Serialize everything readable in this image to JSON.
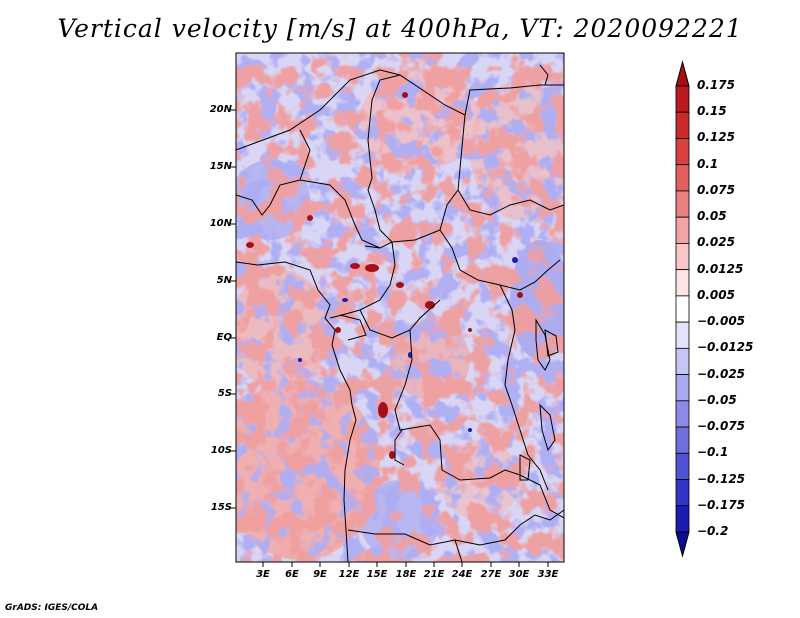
{
  "title": "Vertical velocity [m/s] at 400hPa, VT: 2020092221",
  "credit": "GrADS: IGES/COLA",
  "lat_labels": [
    "20N",
    "15N",
    "10N",
    "5N",
    "EQ",
    "5S",
    "10S",
    "15S"
  ],
  "lon_labels": [
    "3E",
    "6E",
    "9E",
    "12E",
    "15E",
    "18E",
    "21E",
    "24E",
    "27E",
    "30E",
    "33E"
  ],
  "colorbar": {
    "labels": [
      "0.175",
      "0.15",
      "0.125",
      "0.1",
      "0.075",
      "0.05",
      "0.025",
      "0.0125",
      "0.005",
      "−0.005",
      "−0.0125",
      "−0.025",
      "−0.05",
      "−0.075",
      "−0.1",
      "−0.125",
      "−0.175",
      "−0.2"
    ],
    "colors": [
      "#a50f15",
      "#bb1a1f",
      "#cb2a2a",
      "#d94141",
      "#e35f5f",
      "#ea8080",
      "#f2a3a3",
      "#f8c6c6",
      "#fde4e4",
      "#ffffff",
      "#e2e2fb",
      "#c6c6f6",
      "#a9a9f0",
      "#8c8ce8",
      "#6f6fdf",
      "#5252d4",
      "#3434c6",
      "#1c1cb1",
      "#0b0b94"
    ]
  }
}
